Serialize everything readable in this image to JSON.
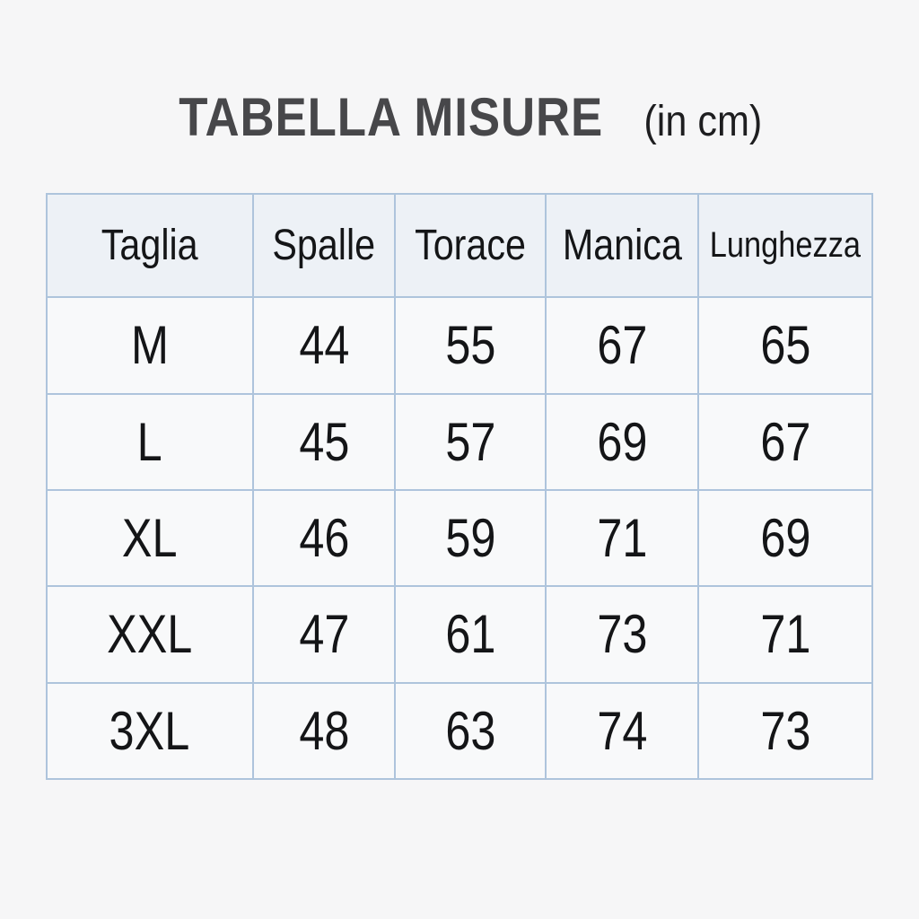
{
  "title": {
    "main": "TABELLA MISURE",
    "unit": "(in cm)"
  },
  "table": {
    "headers": [
      "Taglia",
      "Spalle",
      "Torace",
      "Manica",
      "Lunghezza"
    ],
    "rows": [
      {
        "size": "M",
        "values": [
          "44",
          "55",
          "67",
          "65"
        ]
      },
      {
        "size": "L",
        "values": [
          "45",
          "57",
          "69",
          "67"
        ]
      },
      {
        "size": "XL",
        "values": [
          "46",
          "59",
          "71",
          "69"
        ]
      },
      {
        "size": "XXL",
        "values": [
          "47",
          "61",
          "73",
          "71"
        ]
      },
      {
        "size": "3XL",
        "values": [
          "48",
          "63",
          "74",
          "73"
        ]
      }
    ]
  },
  "colors": {
    "page_bg": "#f6f6f7",
    "grid_border": "#aec4dc",
    "header_bg": "#edf1f6",
    "cell_bg": "#f8f9fa",
    "title": "#47474a",
    "text": "#141517"
  }
}
